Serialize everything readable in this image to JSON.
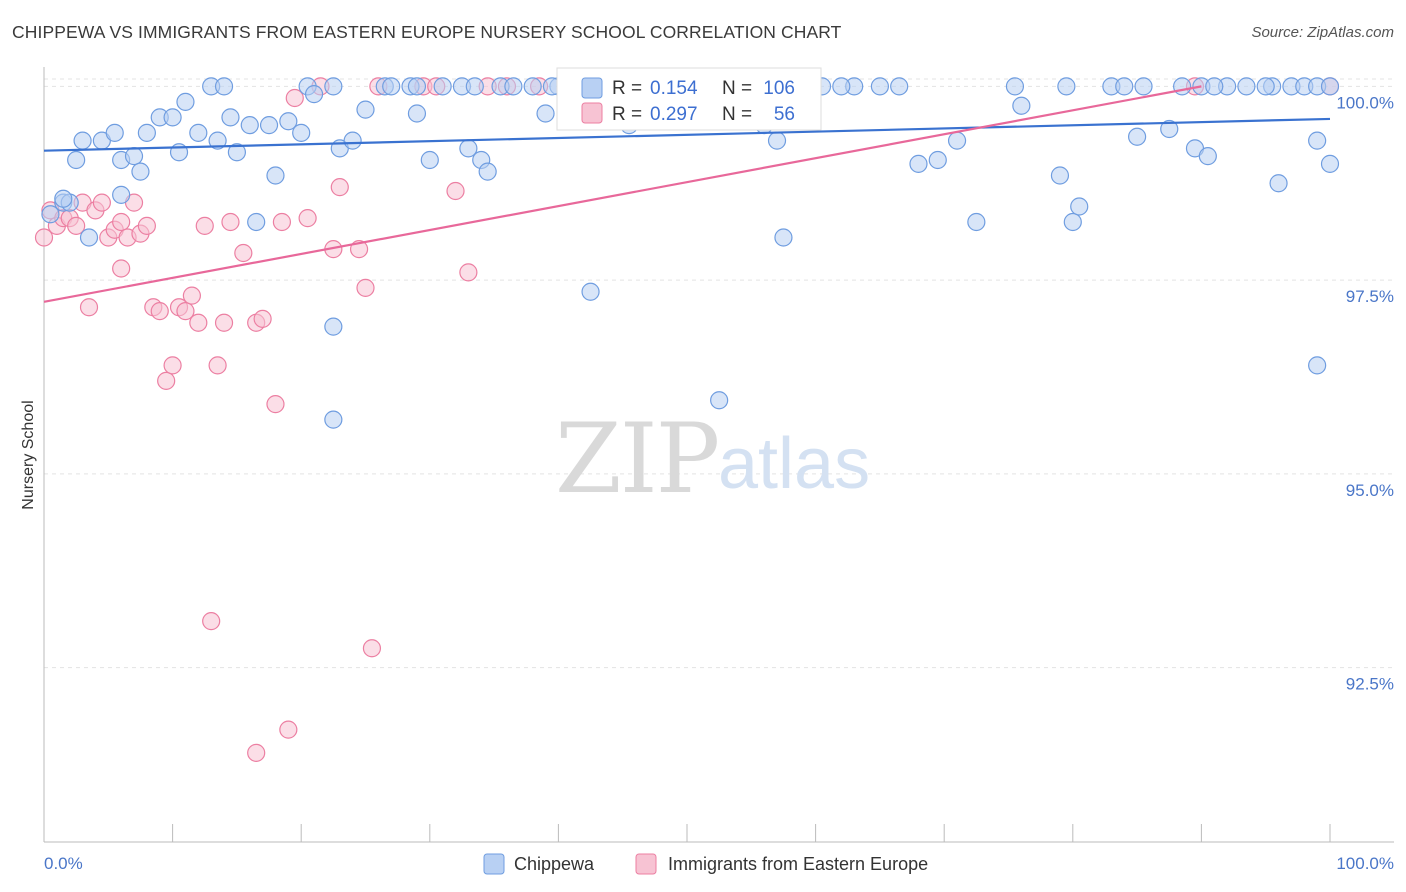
{
  "header": {
    "title": "CHIPPEWA VS IMMIGRANTS FROM EASTERN EUROPE NURSERY SCHOOL CORRELATION CHART",
    "source": "Source: ZipAtlas.com"
  },
  "watermark": {
    "zip": "ZIP",
    "atlas": "atlas"
  },
  "stats_box": {
    "rows": [
      {
        "r_label": "R =",
        "r_value": "0.154",
        "n_label": "N =",
        "n_value": "106",
        "color": "#8fb3e8"
      },
      {
        "r_label": "R =",
        "r_value": "0.297",
        "n_label": "N =",
        "n_value": "56",
        "color": "#f4a9c0"
      }
    ]
  },
  "legend": [
    {
      "name": "Chippewa",
      "color": "#8fb3e8"
    },
    {
      "name": "Immigrants from Eastern Europe",
      "color": "#f4a9c0"
    }
  ],
  "chart_data": {
    "type": "scatter",
    "title": "CHIPPEWA VS IMMIGRANTS FROM EASTERN EUROPE NURSERY SCHOOL CORRELATION CHART",
    "xlabel": "",
    "ylabel": "Nursery School",
    "xlim": [
      0,
      100
    ],
    "ylim": [
      90.25,
      100.25
    ],
    "x_tick_labels": [
      "0.0%",
      "100.0%"
    ],
    "y_ticks": [
      100.0,
      97.5,
      95.0,
      92.5
    ],
    "y_tick_labels": [
      "100.0%",
      "97.5%",
      "95.0%",
      "92.5%"
    ],
    "grid": true,
    "series": [
      {
        "name": "Chippewa",
        "color": "#6f9de0",
        "fill": "#b8d0f3",
        "trend": {
          "x": [
            0,
            100
          ],
          "y": [
            99.17,
            99.58
          ]
        },
        "points": [
          [
            0.5,
            98.35
          ],
          [
            1.5,
            98.5
          ],
          [
            2.0,
            98.5
          ],
          [
            3.5,
            98.05
          ],
          [
            4.5,
            99.3
          ],
          [
            5.5,
            99.4
          ],
          [
            6.0,
            99.05
          ],
          [
            2.5,
            99.05
          ],
          [
            3.0,
            99.3
          ],
          [
            7.0,
            99.1
          ],
          [
            7.5,
            98.9
          ],
          [
            8.0,
            99.4
          ],
          [
            9.0,
            99.6
          ],
          [
            10.0,
            99.6
          ],
          [
            10.5,
            99.15
          ],
          [
            11.0,
            99.8
          ],
          [
            12.0,
            99.4
          ],
          [
            13.0,
            100.0
          ],
          [
            13.5,
            99.3
          ],
          [
            14.0,
            100.0
          ],
          [
            14.5,
            99.6
          ],
          [
            15.0,
            99.15
          ],
          [
            16.0,
            99.5
          ],
          [
            16.5,
            98.25
          ],
          [
            17.5,
            99.5
          ],
          [
            18.0,
            98.85
          ],
          [
            19.0,
            99.55
          ],
          [
            20.0,
            99.4
          ],
          [
            20.5,
            100.0
          ],
          [
            21.0,
            99.9
          ],
          [
            22.5,
            100.0
          ],
          [
            23.0,
            99.2
          ],
          [
            24.0,
            99.3
          ],
          [
            25.0,
            99.7
          ],
          [
            26.5,
            100.0
          ],
          [
            27.0,
            100.0
          ],
          [
            28.5,
            100.0
          ],
          [
            29.0,
            99.65
          ],
          [
            30.0,
            99.05
          ],
          [
            31.0,
            100.0
          ],
          [
            32.5,
            100.0
          ],
          [
            33.0,
            99.2
          ],
          [
            34.0,
            99.05
          ],
          [
            34.5,
            98.9
          ],
          [
            35.5,
            100.0
          ],
          [
            36.5,
            100.0
          ],
          [
            38.0,
            100.0
          ],
          [
            39.0,
            99.65
          ],
          [
            40.0,
            100.0
          ],
          [
            41.0,
            99.9
          ],
          [
            42.5,
            97.35
          ],
          [
            45.5,
            99.5
          ],
          [
            46.5,
            100.0
          ],
          [
            51.5,
            100.0
          ],
          [
            52.5,
            95.95
          ],
          [
            56.0,
            99.5
          ],
          [
            57.0,
            99.3
          ],
          [
            57.5,
            98.05
          ],
          [
            58.5,
            100.0
          ],
          [
            60.5,
            100.0
          ],
          [
            63.0,
            100.0
          ],
          [
            65.0,
            100.0
          ],
          [
            66.5,
            100.0
          ],
          [
            68.0,
            99.0
          ],
          [
            69.5,
            99.05
          ],
          [
            71.0,
            99.3
          ],
          [
            72.5,
            98.25
          ],
          [
            75.5,
            100.0
          ],
          [
            76.0,
            99.75
          ],
          [
            79.0,
            98.85
          ],
          [
            80.0,
            98.25
          ],
          [
            80.5,
            98.45
          ],
          [
            83.0,
            100.0
          ],
          [
            84.0,
            100.0
          ],
          [
            85.0,
            99.35
          ],
          [
            87.5,
            99.45
          ],
          [
            88.5,
            100.0
          ],
          [
            89.5,
            99.2
          ],
          [
            90.0,
            100.0
          ],
          [
            90.5,
            99.1
          ],
          [
            92.0,
            100.0
          ],
          [
            93.5,
            100.0
          ],
          [
            95.5,
            100.0
          ],
          [
            96.0,
            98.75
          ],
          [
            97.0,
            100.0
          ],
          [
            98.0,
            100.0
          ],
          [
            99.0,
            99.3
          ],
          [
            100.0,
            99.0
          ],
          [
            1.5,
            98.55
          ],
          [
            6.0,
            98.6
          ],
          [
            22.5,
            95.7
          ],
          [
            22.5,
            96.9
          ],
          [
            99.0,
            96.4
          ],
          [
            29.0,
            100.0
          ],
          [
            45.0,
            100.0
          ],
          [
            47.0,
            100.0
          ],
          [
            55.0,
            100.0
          ],
          [
            62.0,
            100.0
          ],
          [
            79.5,
            100.0
          ],
          [
            85.5,
            100.0
          ],
          [
            91.0,
            100.0
          ],
          [
            95.0,
            100.0
          ],
          [
            99.0,
            100.0
          ],
          [
            100.0,
            100.0
          ],
          [
            39.5,
            100.0
          ],
          [
            33.5,
            100.0
          ]
        ]
      },
      {
        "name": "Immigrants from Eastern Europe",
        "color": "#ec7fa2",
        "fill": "#f7c3d3",
        "trend": {
          "x": [
            0,
            90
          ],
          "y": [
            97.22,
            100.0
          ]
        },
        "points": [
          [
            0.0,
            98.05
          ],
          [
            0.5,
            98.4
          ],
          [
            1.0,
            98.2
          ],
          [
            1.5,
            98.3
          ],
          [
            2.0,
            98.3
          ],
          [
            2.5,
            98.2
          ],
          [
            3.0,
            98.5
          ],
          [
            3.5,
            97.15
          ],
          [
            4.0,
            98.4
          ],
          [
            4.5,
            98.5
          ],
          [
            5.0,
            98.05
          ],
          [
            5.5,
            98.15
          ],
          [
            6.0,
            98.25
          ],
          [
            6.0,
            97.65
          ],
          [
            6.5,
            98.05
          ],
          [
            7.0,
            98.5
          ],
          [
            7.5,
            98.1
          ],
          [
            8.0,
            98.2
          ],
          [
            8.5,
            97.15
          ],
          [
            9.0,
            97.1
          ],
          [
            9.5,
            96.2
          ],
          [
            10.0,
            96.4
          ],
          [
            10.5,
            97.15
          ],
          [
            11.0,
            97.1
          ],
          [
            11.5,
            97.3
          ],
          [
            12.0,
            96.95
          ],
          [
            12.5,
            98.2
          ],
          [
            13.0,
            93.1
          ],
          [
            13.5,
            96.4
          ],
          [
            14.0,
            96.95
          ],
          [
            14.5,
            98.25
          ],
          [
            15.5,
            97.85
          ],
          [
            16.5,
            91.4
          ],
          [
            16.5,
            96.95
          ],
          [
            17.0,
            97.0
          ],
          [
            18.0,
            95.9
          ],
          [
            18.5,
            98.25
          ],
          [
            19.0,
            91.7
          ],
          [
            19.5,
            99.85
          ],
          [
            20.5,
            98.3
          ],
          [
            21.5,
            100.0
          ],
          [
            22.5,
            97.9
          ],
          [
            23.0,
            98.7
          ],
          [
            24.5,
            97.9
          ],
          [
            25.0,
            97.4
          ],
          [
            25.5,
            92.75
          ],
          [
            26.0,
            100.0
          ],
          [
            29.5,
            100.0
          ],
          [
            32.0,
            98.65
          ],
          [
            33.0,
            97.6
          ],
          [
            34.5,
            100.0
          ],
          [
            36.0,
            100.0
          ],
          [
            30.5,
            100.0
          ],
          [
            38.5,
            100.0
          ],
          [
            89.5,
            100.0
          ],
          [
            100.0,
            100.0
          ]
        ]
      }
    ]
  }
}
